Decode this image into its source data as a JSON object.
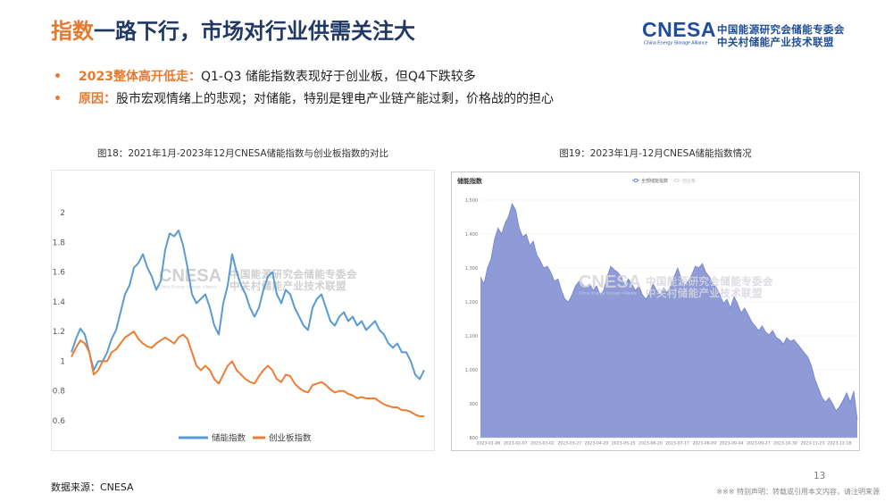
{
  "header": {
    "title_highlight": "指数",
    "title_rest": "一路下行，市场对行业供需关注大",
    "logo": {
      "wordmark": "CNESA",
      "english": "China Energy Storage Alliance",
      "org_line1": "中国能源研究会储能专委会",
      "org_line2": "中关村储能产业技术联盟"
    }
  },
  "bullets": [
    {
      "label": "2023整体高开低走：",
      "text": "Q1-Q3 储能指数表现好于创业板，但Q4下跌较多"
    },
    {
      "label": "原因：",
      "text": "股市宏观情绪上的悲观；对储能，特别是锂电产业链产能过剩，价格战的的担心"
    }
  ],
  "footer": {
    "source": "数据来源：CNESA",
    "page_number": "13",
    "disclaimer": "※※※ 特别声明：转载或引用本文内容，请注明来源"
  },
  "colors": {
    "accent_orange": "#E8792F",
    "title_navy": "#1F3864",
    "logo_blue": "#1E4E9A"
  },
  "chart_data": [
    {
      "type": "line",
      "title": "图18：2021年1月-2023年12月CNESA储能指数与创业板指数的对比",
      "ylim": [
        0.6,
        2
      ],
      "y_ticks": [
        0.6,
        0.8,
        1,
        1.2,
        1.4,
        1.6,
        1.8,
        2
      ],
      "grid": false,
      "legend": "bottom",
      "series": [
        {
          "name": "储能指数",
          "color": "#5B9BD5",
          "values": [
            1.06,
            1.15,
            1.22,
            1.18,
            1.06,
            0.94,
            1.0,
            1.0,
            1.06,
            1.15,
            1.21,
            1.33,
            1.45,
            1.51,
            1.63,
            1.66,
            1.72,
            1.63,
            1.57,
            1.48,
            1.54,
            1.75,
            1.86,
            1.84,
            1.88,
            1.78,
            1.63,
            1.45,
            1.39,
            1.42,
            1.45,
            1.36,
            1.24,
            1.18,
            1.39,
            1.51,
            1.72,
            1.6,
            1.51,
            1.45,
            1.36,
            1.3,
            1.36,
            1.48,
            1.57,
            1.6,
            1.45,
            1.39,
            1.48,
            1.45,
            1.36,
            1.3,
            1.24,
            1.21,
            1.36,
            1.42,
            1.45,
            1.36,
            1.27,
            1.24,
            1.3,
            1.33,
            1.27,
            1.3,
            1.24,
            1.27,
            1.21,
            1.24,
            1.27,
            1.21,
            1.18,
            1.12,
            1.09,
            1.12,
            1.06,
            1.06,
            1.0,
            0.91,
            0.88,
            0.94
          ]
        },
        {
          "name": "创业板指数",
          "color": "#ED7D31",
          "values": [
            1.03,
            1.09,
            1.14,
            1.12,
            1.06,
            0.91,
            0.94,
            1.0,
            1.0,
            1.06,
            1.08,
            1.12,
            1.16,
            1.18,
            1.2,
            1.15,
            1.12,
            1.1,
            1.09,
            1.12,
            1.14,
            1.16,
            1.14,
            1.12,
            1.16,
            1.18,
            1.15,
            1.06,
            0.97,
            0.94,
            0.97,
            0.94,
            0.88,
            0.85,
            0.91,
            0.97,
            1.0,
            0.94,
            0.91,
            0.88,
            0.86,
            0.85,
            0.9,
            0.94,
            0.97,
            0.94,
            0.88,
            0.86,
            0.91,
            0.9,
            0.85,
            0.82,
            0.8,
            0.79,
            0.84,
            0.85,
            0.86,
            0.84,
            0.81,
            0.79,
            0.8,
            0.8,
            0.78,
            0.77,
            0.75,
            0.76,
            0.75,
            0.75,
            0.75,
            0.73,
            0.71,
            0.7,
            0.69,
            0.69,
            0.67,
            0.67,
            0.66,
            0.64,
            0.63,
            0.63
          ]
        }
      ]
    },
    {
      "type": "area",
      "title": "图19：2023年1月-12月CNESA储能指数情况",
      "inner_title": "储能指数",
      "ylim": [
        800,
        1500
      ],
      "y_ticks": [
        "800",
        "900",
        "1,000",
        "1,100",
        "1,200",
        "1,300",
        "1,400",
        "1,500"
      ],
      "x_tick_labels": [
        "2023-01-06",
        "2023-02-07",
        "2023-03-02",
        "2023-03-27",
        "2023-04-20",
        "2023-05-25",
        "2023-06-20",
        "2023-07-17",
        "2023-08-09",
        "2023-09-04",
        "2023-09-27",
        "2023-10-30",
        "2023-11-23",
        "2023-12-18"
      ],
      "grid": true,
      "legend": "top-center",
      "legend_items": [
        {
          "name": "全部储能指数",
          "active": true,
          "color": "#5470C6"
        },
        {
          "name": "创业板",
          "active": false,
          "color": "#CCCCCC"
        }
      ],
      "series": [
        {
          "name": "全部储能指数",
          "color": "#7384CC",
          "fill": "#8E9BD6",
          "values": [
            1274,
            1253,
            1300,
            1326,
            1384,
            1418,
            1400,
            1432,
            1453,
            1489,
            1471,
            1418,
            1392,
            1400,
            1366,
            1379,
            1339,
            1321,
            1300,
            1305,
            1287,
            1261,
            1268,
            1234,
            1208,
            1200,
            1221,
            1247,
            1261,
            1253,
            1242,
            1253,
            1234,
            1247,
            1221,
            1234,
            1274,
            1305,
            1295,
            1287,
            1274,
            1247,
            1268,
            1253,
            1234,
            1247,
            1221,
            1208,
            1226,
            1253,
            1234,
            1221,
            1242,
            1226,
            1247,
            1274,
            1300,
            1268,
            1247,
            1261,
            1279,
            1305,
            1300,
            1313,
            1287,
            1274,
            1253,
            1242,
            1221,
            1195,
            1208,
            1182,
            1216,
            1195,
            1168,
            1182,
            1163,
            1142,
            1129,
            1116,
            1129,
            1111,
            1103,
            1116,
            1095,
            1089,
            1076,
            1095,
            1084,
            1089,
            1076,
            1063,
            1050,
            1037,
            1011,
            971,
            945,
            918,
            905,
            918,
            900,
            879,
            892,
            911,
            932,
            905,
            937,
            853
          ]
        }
      ]
    }
  ]
}
